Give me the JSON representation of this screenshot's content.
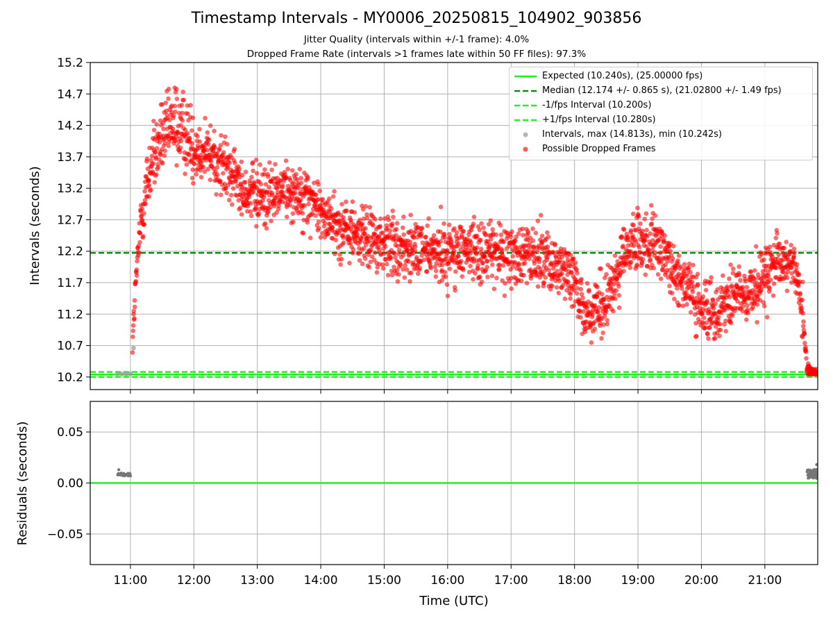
{
  "title": "Timestamp Intervals - MY0006_20250815_104902_903856",
  "subtitle1": "Jitter Quality (intervals within +/-1 frame): 4.0%",
  "subtitle2": "Dropped Frame Rate (intervals >1 frames late within 50 FF files): 97.3%",
  "colors": {
    "expected": "#22ee22",
    "median": "#118811",
    "dropped": "#ff0000",
    "intervals": "#999999",
    "residual_points": "#777777",
    "grid": "#b0b0b0"
  },
  "legend": {
    "expected": "Expected (10.240s), (25.00000 fps)",
    "median": "Median (12.174 +/- 0.865 s), (21.02800 +/- 1.49 fps)",
    "minus": "-1/fps Interval (10.200s)",
    "plus": "+1/fps Interval (10.280s)",
    "intervals": "Intervals, max (14.813s), min (10.242s)",
    "dropped": "Possible Dropped Frames"
  },
  "chart_data": [
    {
      "type": "scatter",
      "title": "Timestamp Intervals - MY0006_20250815_104902_903856",
      "ylabel": "Intervals (seconds)",
      "xlabel": "",
      "ylim": [
        10.0,
        15.2
      ],
      "xlim": [
        "10:22",
        "21:50"
      ],
      "grid": true,
      "legend_position": "top-right",
      "yticks": [
        "10.2",
        "10.7",
        "11.2",
        "11.7",
        "12.2",
        "12.7",
        "13.2",
        "13.7",
        "14.2",
        "14.7",
        "15.2"
      ],
      "xticks": [
        "11:00",
        "12:00",
        "13:00",
        "14:00",
        "15:00",
        "16:00",
        "17:00",
        "18:00",
        "19:00",
        "20:00",
        "21:00"
      ],
      "reference_lines": [
        {
          "name": "Expected (10.240s), (25.00000 fps)",
          "y": 10.24,
          "style": "solid"
        },
        {
          "name": "Median (12.174 +/- 0.865 s), (21.02800 +/- 1.49 fps)",
          "y": 12.174,
          "style": "dashed"
        },
        {
          "name": "-1/fps Interval (10.200s)",
          "y": 10.2,
          "style": "dashed"
        },
        {
          "name": "+1/fps Interval (10.280s)",
          "y": 10.28,
          "style": "dashed"
        }
      ],
      "series": [
        {
          "name": "Intervals, max (14.813s), min (10.242s)",
          "points": [
            [
              "10:48",
              10.25
            ],
            [
              "10:52",
              10.25
            ],
            [
              "10:56",
              10.25
            ],
            [
              "11:00",
              10.25
            ],
            [
              "11:03",
              10.66
            ],
            [
              "21:40",
              10.25
            ],
            [
              "21:45",
              10.25
            ]
          ]
        },
        {
          "name": "Possible Dropped Frames",
          "trend": [
            [
              "11:02",
              10.75
            ],
            [
              "11:05",
              11.7
            ],
            [
              "11:10",
              12.7
            ],
            [
              "11:15",
              13.2
            ],
            [
              "11:20",
              13.6
            ],
            [
              "11:30",
              14.0
            ],
            [
              "11:40",
              14.2
            ],
            [
              "11:50",
              14.1
            ],
            [
              "12:00",
              13.85
            ],
            [
              "12:15",
              13.75
            ],
            [
              "12:30",
              13.5
            ],
            [
              "12:45",
              13.25
            ],
            [
              "13:00",
              13.05
            ],
            [
              "13:15",
              13.1
            ],
            [
              "13:30",
              13.2
            ],
            [
              "13:45",
              13.1
            ],
            [
              "14:00",
              12.85
            ],
            [
              "14:15",
              12.6
            ],
            [
              "14:30",
              12.5
            ],
            [
              "14:45",
              12.4
            ],
            [
              "15:00",
              12.3
            ],
            [
              "15:30",
              12.2
            ],
            [
              "16:00",
              12.2
            ],
            [
              "16:30",
              12.2
            ],
            [
              "17:00",
              12.15
            ],
            [
              "17:30",
              12.1
            ],
            [
              "17:45",
              12.0
            ],
            [
              "18:00",
              11.75
            ],
            [
              "18:10",
              11.25
            ],
            [
              "18:20",
              11.2
            ],
            [
              "18:30",
              11.35
            ],
            [
              "18:45",
              12.1
            ],
            [
              "19:00",
              12.35
            ],
            [
              "19:15",
              12.3
            ],
            [
              "19:30",
              12.0
            ],
            [
              "19:45",
              11.7
            ],
            [
              "20:00",
              11.2
            ],
            [
              "20:15",
              11.3
            ],
            [
              "20:30",
              11.45
            ],
            [
              "20:45",
              11.55
            ],
            [
              "21:00",
              11.8
            ],
            [
              "21:15",
              12.0
            ],
            [
              "21:25",
              12.05
            ],
            [
              "21:30",
              11.9
            ],
            [
              "21:35",
              11.3
            ],
            [
              "21:38",
              10.7
            ],
            [
              "21:40",
              10.3
            ],
            [
              "21:50",
              10.25
            ]
          ]
        }
      ]
    },
    {
      "type": "scatter",
      "ylabel": "Residuals (seconds)",
      "xlabel": "Time (UTC)",
      "ylim": [
        -0.08,
        0.08
      ],
      "yticks": [
        "0.05",
        "0.00",
        "−0.05"
      ],
      "xticks": [
        "11:00",
        "12:00",
        "13:00",
        "14:00",
        "15:00",
        "16:00",
        "17:00",
        "18:00",
        "19:00",
        "20:00",
        "21:00"
      ],
      "reference_lines": [
        {
          "name": "Expected",
          "y": 0.0,
          "style": "solid"
        }
      ],
      "series": [
        {
          "name": "Residuals",
          "points": [
            [
              "10:48",
              0.008
            ],
            [
              "10:49",
              0.013
            ],
            [
              "10:50",
              0.009
            ],
            [
              "10:52",
              0.008
            ],
            [
              "10:54",
              0.007
            ],
            [
              "10:56",
              0.008
            ],
            [
              "10:58",
              0.007
            ],
            [
              "11:00",
              0.007
            ],
            [
              "21:40",
              0.011
            ],
            [
              "21:42",
              0.006
            ],
            [
              "21:44",
              0.009
            ],
            [
              "21:46",
              0.005
            ],
            [
              "21:47",
              0.013
            ],
            [
              "21:48",
              0.008
            ],
            [
              "21:49",
              0.018
            ]
          ]
        }
      ]
    }
  ]
}
